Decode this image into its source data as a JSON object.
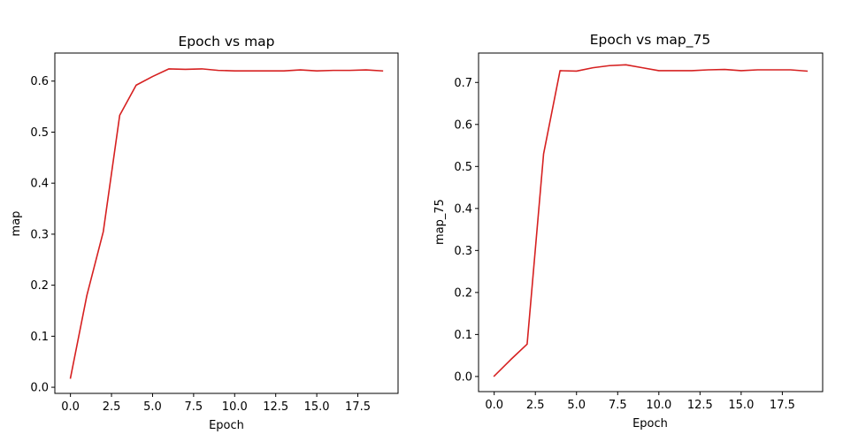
{
  "chart_data": [
    {
      "type": "line",
      "title": "Epoch vs map",
      "xlabel": "Epoch",
      "ylabel": "map",
      "xlim": [
        -0.95,
        19.95
      ],
      "ylim": [
        -0.012,
        0.655
      ],
      "xticks": [
        0,
        2.5,
        5,
        7.5,
        10,
        12.5,
        15,
        17.5
      ],
      "xtick_labels": [
        "0.0",
        "2.5",
        "5.0",
        "7.5",
        "10.0",
        "12.5",
        "15.0",
        "17.5"
      ],
      "yticks": [
        0,
        0.1,
        0.2,
        0.3,
        0.4,
        0.5,
        0.6
      ],
      "ytick_labels": [
        "0.0",
        "0.1",
        "0.2",
        "0.3",
        "0.4",
        "0.5",
        "0.6"
      ],
      "grid": false,
      "series": [
        {
          "color": "#d62020",
          "x": [
            0,
            1,
            2,
            3,
            4,
            5,
            6,
            7,
            8,
            9,
            10,
            11,
            12,
            13,
            14,
            15,
            16,
            17,
            18,
            19
          ],
          "values": [
            0.018,
            0.18,
            0.305,
            0.533,
            0.592,
            0.609,
            0.624,
            0.623,
            0.624,
            0.621,
            0.62,
            0.62,
            0.62,
            0.62,
            0.622,
            0.62,
            0.621,
            0.621,
            0.622,
            0.62
          ]
        }
      ]
    },
    {
      "type": "line",
      "title": "Epoch vs map_75",
      "xlabel": "Epoch",
      "ylabel": "map_75",
      "xlim": [
        -0.95,
        19.95
      ],
      "ylim": [
        -0.036,
        0.77
      ],
      "xticks": [
        0,
        2.5,
        5,
        7.5,
        10,
        12.5,
        15,
        17.5
      ],
      "xtick_labels": [
        "0.0",
        "2.5",
        "5.0",
        "7.5",
        "10.0",
        "12.5",
        "15.0",
        "17.5"
      ],
      "yticks": [
        0,
        0.1,
        0.2,
        0.3,
        0.4,
        0.5,
        0.6,
        0.7
      ],
      "ytick_labels": [
        "0.0",
        "0.1",
        "0.2",
        "0.3",
        "0.4",
        "0.5",
        "0.6",
        "0.7"
      ],
      "grid": false,
      "series": [
        {
          "color": "#d62020",
          "x": [
            0,
            1,
            2,
            3,
            4,
            5,
            6,
            7,
            8,
            9,
            10,
            11,
            12,
            13,
            14,
            15,
            16,
            17,
            18,
            19
          ],
          "values": [
            0.001,
            0.04,
            0.077,
            0.53,
            0.728,
            0.727,
            0.735,
            0.74,
            0.742,
            0.735,
            0.728,
            0.728,
            0.728,
            0.73,
            0.731,
            0.728,
            0.73,
            0.73,
            0.73,
            0.727
          ]
        }
      ]
    }
  ]
}
